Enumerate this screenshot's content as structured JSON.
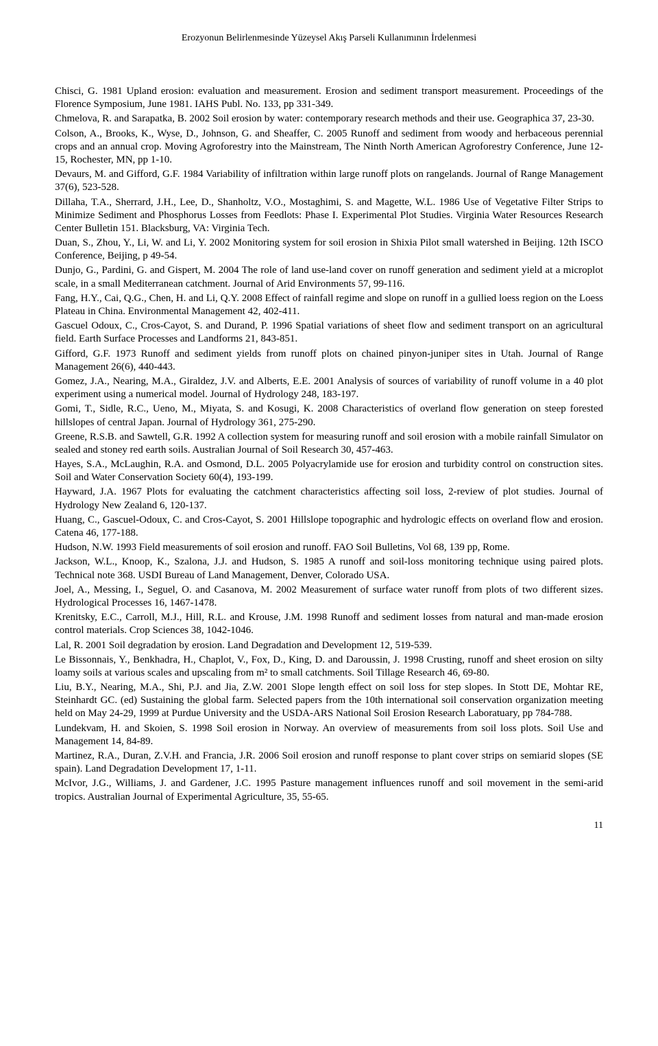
{
  "header": {
    "title": "Erozyonun Belirlenmesinde Yüzeysel Akış Parseli Kullanımının İrdelenmesi"
  },
  "references": [
    "Chisci, G. 1981 Upland erosion: evaluation and measurement. Erosion and sediment transport measurement. Proceedings of the Florence Symposium, June 1981. IAHS Publ. No. 133, pp 331-349.",
    "Chmelova, R. and Sarapatka, B. 2002 Soil erosion by water: contemporary research methods and their use. Geographica 37, 23-30.",
    "Colson, A., Brooks, K., Wyse, D., Johnson, G. and Sheaffer, C. 2005 Runoff and sediment from woody and herbaceous perennial crops and an annual crop. Moving Agroforestry into the Mainstream, The Ninth North American Agroforestry Conference, June 12-15, Rochester, MN, pp 1-10.",
    "Devaurs, M. and Gifford, G.F. 1984 Variability of infiltration within large runoff plots on rangelands. Journal of Range Management 37(6), 523-528.",
    "Dillaha, T.A., Sherrard, J.H., Lee, D., Shanholtz, V.O., Mostaghimi, S. and Magette, W.L. 1986 Use of Vegetative Filter Strips to Minimize Sediment and Phosphorus Losses from Feedlots: Phase I. Experimental Plot Studies. Virginia Water Resources Research Center Bulletin 151. Blacksburg, VA: Virginia Tech.",
    "Duan, S., Zhou, Y., Li, W. and Li, Y. 2002 Monitoring system for soil erosion in Shixia Pilot small watershed in Beijing. 12th ISCO Conference, Beijing, p 49-54.",
    "Dunjo, G., Pardini, G. and Gispert, M. 2004 The role of land use-land cover on runoff generation and sediment yield at a microplot scale, in a small Mediterranean catchment. Journal of Arid Environments 57, 99-116.",
    "Fang, H.Y., Cai, Q.G., Chen, H. and Li, Q.Y. 2008 Effect of rainfall regime and slope on runoff in a gullied loess region on the Loess Plateau in China. Environmental Management 42, 402-411.",
    "Gascuel Odoux, C., Cros-Cayot, S. and Durand, P. 1996 Spatial variations of sheet flow and sediment transport on an agricultural field. Earth Surface Processes and Landforms 21, 843-851.",
    "Gifford, G.F. 1973 Runoff and sediment yields from runoff plots on chained pinyon-juniper sites in Utah. Journal of Range Management 26(6), 440-443.",
    "Gomez, J.A., Nearing, M.A., Giraldez, J.V. and Alberts, E.E. 2001 Analysis of sources of variability of runoff volume in a 40 plot experiment using a numerical model. Journal of Hydrology 248, 183-197.",
    "Gomi, T., Sidle, R.C., Ueno, M., Miyata, S. and Kosugi, K. 2008 Characteristics of overland flow generation on steep forested hillslopes of central Japan. Journal of Hydrology 361, 275-290.",
    "Greene, R.S.B. and Sawtell, G.R. 1992 A collection system for measuring runoff and soil erosion with a mobile rainfall Simulator on sealed and stoney red earth soils. Australian Journal of Soil Research 30, 457-463.",
    "Hayes, S.A., McLaughin, R.A. and Osmond, D.L. 2005 Polyacrylamide use for erosion and turbidity control on construction sites. Soil and Water Conservation Society 60(4), 193-199.",
    "Hayward, J.A. 1967 Plots for evaluating the catchment characteristics affecting soil loss, 2-review of plot studies. Journal of Hydrology New Zealand 6, 120-137.",
    "Huang, C., Gascuel-Odoux, C. and Cros-Cayot, S. 2001 Hillslope topographic and hydrologic effects on overland flow and erosion. Catena 46, 177-188.",
    "Hudson, N.W. 1993 Field measurements of soil erosion and runoff. FAO Soil Bulletins, Vol 68, 139 pp, Rome.",
    "Jackson, W.L., Knoop, K., Szalona, J.J. and Hudson, S. 1985 A runoff and soil-loss monitoring technique using paired plots. Technical note 368. USDI Bureau of Land Management, Denver, Colorado USA.",
    "Joel, A., Messing, I., Seguel, O. and Casanova, M. 2002 Measurement of surface water runoff from plots of two different sizes. Hydrological Processes 16, 1467-1478.",
    "Krenitsky, E.C., Carroll, M.J., Hill, R.L. and Krouse, J.M. 1998 Runoff and sediment losses from natural and man-made erosion control materials. Crop Sciences 38, 1042-1046.",
    "Lal, R. 2001 Soil degradation by erosion. Land Degradation and Development 12, 519-539.",
    "Le Bissonnais, Y., Benkhadra, H., Chaplot, V., Fox, D., King, D. and Daroussin, J. 1998 Crusting, runoff and sheet erosion on silty loamy soils at various scales and upscaling from m² to small catchments. Soil Tillage Research 46, 69-80.",
    "Liu, B.Y., Nearing, M.A., Shi, P.J. and Jia, Z.W. 2001 Slope length effect on soil loss for step slopes. In Stott DE, Mohtar RE, Steinhardt GC. (ed) Sustaining the global farm. Selected papers from the 10th international soil conservation organization meeting held on May 24-29, 1999 at Purdue University and the USDA-ARS National Soil Erosion Research Laboratuary, pp 784-788.",
    "Lundekvam, H. and Skoien, S. 1998 Soil erosion in Norway. An overview of measurements from soil loss plots. Soil Use and Management 14, 84-89.",
    "Martinez, R.A., Duran, Z.V.H. and Francia, J.R. 2006 Soil erosion and runoff response to plant cover strips on semiarid slopes (SE spain). Land Degradation Development 17, 1-11.",
    "McIvor, J.G., Williams, J. and Gardener, J.C. 1995 Pasture management influences runoff and soil movement in the semi-arid tropics. Australian Journal of Experimental Agriculture, 35, 55-65."
  ],
  "page_number": "11"
}
